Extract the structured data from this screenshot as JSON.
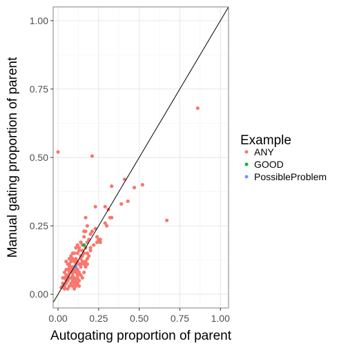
{
  "chart_data": {
    "type": "scatter",
    "xlabel": "Autogating proportion of parent",
    "ylabel": "Manual gating proportion of parent",
    "xlim": [
      -0.03,
      1.05
    ],
    "ylim": [
      -0.05,
      1.05
    ],
    "x_ticks": [
      "0.00",
      "0.25",
      "0.50",
      "0.75",
      "1.00"
    ],
    "y_ticks": [
      "0.00",
      "0.25",
      "0.50",
      "0.75",
      "1.00"
    ],
    "x_tick_values": [
      0,
      0.25,
      0.5,
      0.75,
      1
    ],
    "y_tick_values": [
      0,
      0.25,
      0.5,
      0.75,
      1
    ],
    "grid": true,
    "reference_line": "y = x",
    "legend": {
      "title": "Example",
      "position": "right",
      "entries": [
        {
          "label": "ANY",
          "color": "#F8766D"
        },
        {
          "label": "GOOD",
          "color": "#00BA38"
        },
        {
          "label": "PossibleProblem",
          "color": "#619CFF"
        }
      ]
    },
    "series": [
      {
        "name": "ANY",
        "color": "#F8766D",
        "points": [
          [
            0.86,
            0.68
          ],
          [
            0.0,
            0.52
          ],
          [
            0.21,
            0.505
          ],
          [
            0.67,
            0.27
          ],
          [
            0.52,
            0.4
          ],
          [
            0.47,
            0.39
          ],
          [
            0.41,
            0.42
          ],
          [
            0.33,
            0.395
          ],
          [
            0.43,
            0.34
          ],
          [
            0.39,
            0.33
          ],
          [
            0.29,
            0.32
          ],
          [
            0.31,
            0.31
          ],
          [
            0.23,
            0.32
          ],
          [
            0.32,
            0.28
          ],
          [
            0.33,
            0.28
          ],
          [
            0.29,
            0.26
          ],
          [
            0.3,
            0.25
          ],
          [
            0.17,
            0.28
          ],
          [
            0.25,
            0.2
          ],
          [
            0.26,
            0.19
          ],
          [
            0.24,
            0.21
          ],
          [
            0.21,
            0.23
          ],
          [
            0.2,
            0.22
          ],
          [
            0.18,
            0.25
          ],
          [
            0.17,
            0.23
          ],
          [
            0.16,
            0.23
          ],
          [
            0.19,
            0.2
          ],
          [
            0.18,
            0.19
          ],
          [
            0.16,
            0.21
          ],
          [
            0.15,
            0.18
          ],
          [
            0.14,
            0.19
          ],
          [
            0.17,
            0.17
          ],
          [
            0.2,
            0.16
          ],
          [
            0.18,
            0.15
          ],
          [
            0.15,
            0.16
          ],
          [
            0.13,
            0.17
          ],
          [
            0.12,
            0.15
          ],
          [
            0.14,
            0.14
          ],
          [
            0.11,
            0.13
          ],
          [
            0.1,
            0.12
          ],
          [
            0.09,
            0.13
          ],
          [
            0.08,
            0.12
          ],
          [
            0.12,
            0.12
          ],
          [
            0.13,
            0.11
          ],
          [
            0.15,
            0.12
          ],
          [
            0.16,
            0.11
          ],
          [
            0.11,
            0.11
          ],
          [
            0.1,
            0.1
          ],
          [
            0.09,
            0.1
          ],
          [
            0.08,
            0.09
          ],
          [
            0.07,
            0.1
          ],
          [
            0.06,
            0.09
          ],
          [
            0.07,
            0.08
          ],
          [
            0.09,
            0.08
          ],
          [
            0.1,
            0.09
          ],
          [
            0.11,
            0.08
          ],
          [
            0.12,
            0.09
          ],
          [
            0.13,
            0.08
          ],
          [
            0.14,
            0.1
          ],
          [
            0.05,
            0.07
          ],
          [
            0.06,
            0.07
          ],
          [
            0.07,
            0.06
          ],
          [
            0.08,
            0.06
          ],
          [
            0.06,
            0.05
          ],
          [
            0.05,
            0.05
          ],
          [
            0.04,
            0.06
          ],
          [
            0.05,
            0.04
          ],
          [
            0.04,
            0.03
          ],
          [
            0.03,
            0.04
          ],
          [
            0.03,
            0.03
          ],
          [
            0.02,
            0.025
          ],
          [
            0.04,
            0.02
          ],
          [
            0.06,
            0.02
          ],
          [
            0.07,
            0.03
          ],
          [
            0.08,
            0.04
          ],
          [
            0.09,
            0.05
          ],
          [
            0.1,
            0.06
          ],
          [
            0.11,
            0.05
          ],
          [
            0.12,
            0.06
          ],
          [
            0.13,
            0.05
          ],
          [
            0.14,
            0.07
          ],
          [
            0.15,
            0.06
          ],
          [
            0.16,
            0.08
          ],
          [
            0.17,
            0.1
          ],
          [
            0.18,
            0.13
          ],
          [
            0.11,
            0.03
          ],
          [
            0.1,
            0.02
          ],
          [
            0.09,
            0.03
          ],
          [
            0.12,
            0.04
          ],
          [
            0.13,
            0.03
          ],
          [
            0.06,
            0.11
          ],
          [
            0.05,
            0.12
          ],
          [
            0.07,
            0.13
          ],
          [
            0.08,
            0.14
          ],
          [
            0.09,
            0.15
          ],
          [
            0.11,
            0.17
          ],
          [
            0.12,
            0.18
          ],
          [
            0.13,
            0.16
          ],
          [
            0.1,
            0.15
          ],
          [
            0.14,
            0.13
          ],
          [
            0.15,
            0.14
          ],
          [
            0.16,
            0.15
          ],
          [
            0.19,
            0.14
          ],
          [
            0.2,
            0.17
          ],
          [
            0.22,
            0.18
          ],
          [
            0.24,
            0.19
          ],
          [
            0.23,
            0.24
          ],
          [
            0.26,
            0.2
          ],
          [
            0.07,
            0.11
          ],
          [
            0.08,
            0.1
          ],
          [
            0.05,
            0.09
          ],
          [
            0.04,
            0.08
          ],
          [
            0.03,
            0.06
          ],
          [
            0.06,
            0.06
          ],
          [
            0.09,
            0.07
          ],
          [
            0.1,
            0.04
          ],
          [
            0.12,
            0.07
          ],
          [
            0.14,
            0.11
          ],
          [
            0.17,
            0.12
          ],
          [
            0.18,
            0.11
          ]
        ]
      },
      {
        "name": "GOOD",
        "color": "#00BA38",
        "points": [
          [
            0.16,
            0.18
          ]
        ]
      },
      {
        "name": "PossibleProblem",
        "color": "#619CFF",
        "points": [
          [
            0.11,
            0.1
          ]
        ]
      }
    ]
  }
}
